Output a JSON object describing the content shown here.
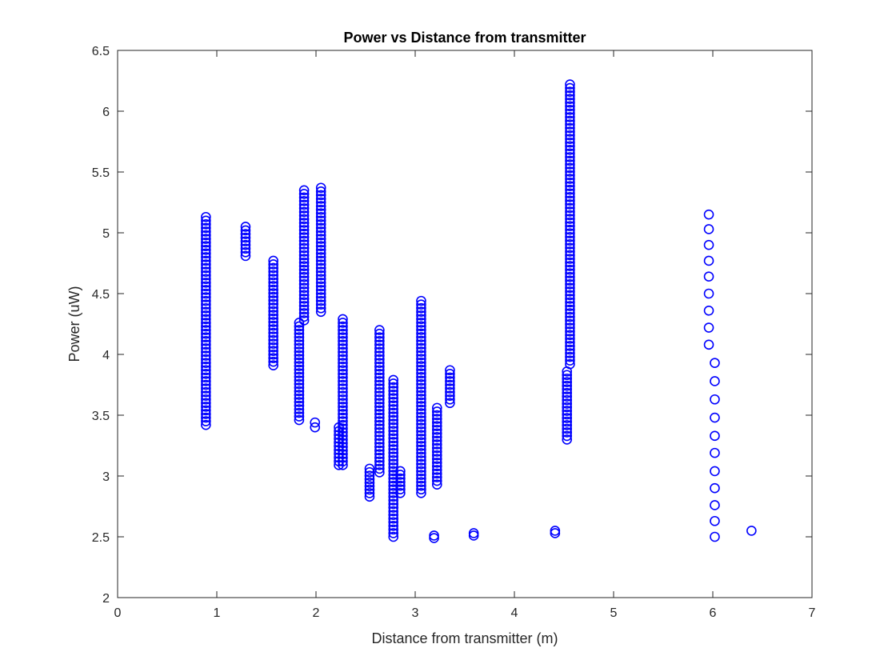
{
  "chart_data": {
    "type": "scatter",
    "title": "Power vs Distance from transmitter",
    "xlabel": "Distance from transmitter (m)",
    "ylabel": "Power (uW)",
    "xlim": [
      0,
      7
    ],
    "ylim": [
      2,
      6.5
    ],
    "xticks": [
      0,
      1,
      2,
      3,
      4,
      5,
      6,
      7
    ],
    "xtick_labels": [
      "0",
      "1",
      "2",
      "3",
      "4",
      "5",
      "6",
      "7"
    ],
    "yticks": [
      2,
      2.5,
      3,
      3.5,
      4,
      4.5,
      5,
      5.5,
      6,
      6.5
    ],
    "ytick_labels": [
      "2",
      "2.5",
      "3",
      "3.5",
      "4",
      "4.5",
      "5",
      "5.5",
      "6",
      "6.5"
    ],
    "grid": false,
    "marker": "circle-open",
    "color": "#0000ff",
    "clusters": [
      {
        "x": 0.89,
        "y_min": 3.42,
        "y_max": 5.13,
        "step": 0.03
      },
      {
        "x": 1.29,
        "y_min": 4.81,
        "y_max": 5.05,
        "step": 0.03
      },
      {
        "x": 1.57,
        "y_min": 3.91,
        "y_max": 4.77,
        "step": 0.03
      },
      {
        "x": 1.83,
        "y_min": 3.46,
        "y_max": 4.26,
        "step": 0.03
      },
      {
        "x": 1.88,
        "y_min": 4.28,
        "y_max": 5.35,
        "step": 0.03
      },
      {
        "x": 1.99,
        "y_min": 3.4,
        "y_max": 3.44,
        "step": 0.03
      },
      {
        "x": 2.05,
        "y_min": 4.35,
        "y_max": 5.37,
        "step": 0.03
      },
      {
        "x": 2.23,
        "y_min": 3.09,
        "y_max": 3.4,
        "step": 0.03
      },
      {
        "x": 2.27,
        "y_min": 3.09,
        "y_max": 4.29,
        "step": 0.03
      },
      {
        "x": 2.54,
        "y_min": 2.83,
        "y_max": 3.06,
        "step": 0.03
      },
      {
        "x": 2.64,
        "y_min": 3.03,
        "y_max": 4.2,
        "step": 0.03
      },
      {
        "x": 2.78,
        "y_min": 2.5,
        "y_max": 3.79,
        "step": 0.03
      },
      {
        "x": 2.85,
        "y_min": 2.86,
        "y_max": 3.04,
        "step": 0.03
      },
      {
        "x": 3.06,
        "y_min": 2.86,
        "y_max": 4.44,
        "step": 0.03
      },
      {
        "x": 3.19,
        "y_min": 2.49,
        "y_max": 2.51,
        "step": 0.03
      },
      {
        "x": 3.22,
        "y_min": 2.93,
        "y_max": 3.56,
        "step": 0.03
      },
      {
        "x": 3.35,
        "y_min": 3.6,
        "y_max": 3.87,
        "step": 0.03
      },
      {
        "x": 3.59,
        "y_min": 2.51,
        "y_max": 2.53,
        "step": 0.03
      },
      {
        "x": 4.41,
        "y_min": 2.53,
        "y_max": 2.55,
        "step": 0.03
      },
      {
        "x": 4.53,
        "y_min": 3.3,
        "y_max": 3.86,
        "step": 0.03
      },
      {
        "x": 4.56,
        "y_min": 3.92,
        "y_max": 6.22,
        "step": 0.03
      }
    ],
    "points": [
      {
        "x": 5.96,
        "y": 5.15
      },
      {
        "x": 5.96,
        "y": 5.03
      },
      {
        "x": 5.96,
        "y": 4.9
      },
      {
        "x": 5.96,
        "y": 4.77
      },
      {
        "x": 5.96,
        "y": 4.64
      },
      {
        "x": 5.96,
        "y": 4.5
      },
      {
        "x": 5.96,
        "y": 4.36
      },
      {
        "x": 5.96,
        "y": 4.22
      },
      {
        "x": 5.96,
        "y": 4.08
      },
      {
        "x": 6.02,
        "y": 3.93
      },
      {
        "x": 6.02,
        "y": 3.78
      },
      {
        "x": 6.02,
        "y": 3.63
      },
      {
        "x": 6.02,
        "y": 3.48
      },
      {
        "x": 6.02,
        "y": 3.33
      },
      {
        "x": 6.02,
        "y": 3.19
      },
      {
        "x": 6.02,
        "y": 3.04
      },
      {
        "x": 6.02,
        "y": 2.9
      },
      {
        "x": 6.02,
        "y": 2.76
      },
      {
        "x": 6.02,
        "y": 2.63
      },
      {
        "x": 6.02,
        "y": 2.5
      },
      {
        "x": 6.39,
        "y": 2.55
      }
    ]
  }
}
